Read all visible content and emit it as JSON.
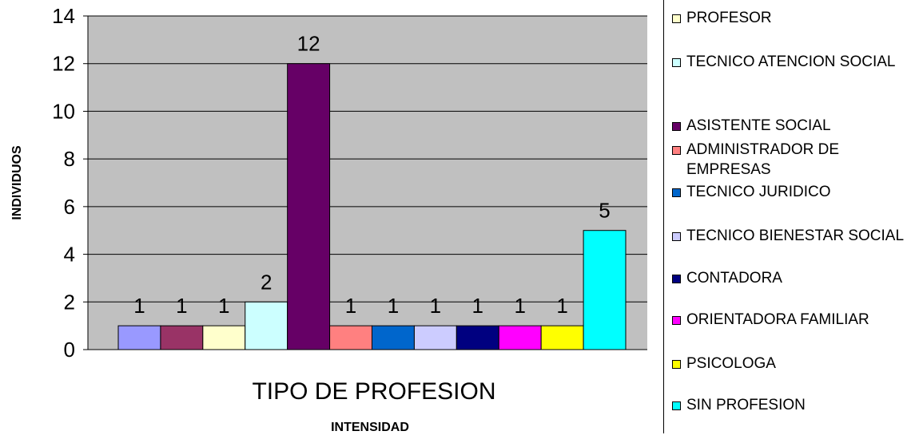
{
  "chart_data": {
    "type": "bar",
    "categories": [
      "",
      "",
      "",
      "",
      "",
      "",
      "",
      "",
      "",
      "",
      "",
      ""
    ],
    "values": [
      1,
      1,
      1,
      2,
      12,
      1,
      1,
      1,
      1,
      1,
      1,
      5
    ],
    "data_labels": [
      "1",
      "1",
      "1",
      "2",
      "12",
      "1",
      "1",
      "1",
      "1",
      "1",
      "1",
      "5"
    ],
    "bar_colors": [
      "#9999FF",
      "#993366",
      "#FFFFCC",
      "#CCFFFF",
      "#660066",
      "#FF8080",
      "#0066CC",
      "#CCCCFF",
      "#000080",
      "#FF00FF",
      "#FFFF00",
      "#00FFFF"
    ],
    "xlabel": "TIPO DE PROFESION",
    "xtitle": "INTENSIDAD",
    "ylabel": "INDIVIDUOS",
    "ylim": [
      0,
      14
    ],
    "yticks": [
      0,
      2,
      4,
      6,
      8,
      10,
      12,
      14
    ],
    "grid": true,
    "plot_background": "#C0C0C0",
    "legend_position": "right",
    "legend": [
      {
        "label": "PROFESOR",
        "color": "#FFFFCC"
      },
      {
        "label": "TECNICO ATENCION SOCIAL",
        "color": "#CCFFFF"
      },
      {
        "label": "ASISTENTE SOCIAL",
        "color": "#660066"
      },
      {
        "label": "ADMINISTRADOR DE EMPRESAS",
        "color": "#FF8080"
      },
      {
        "label": "TECNICO JURIDICO",
        "color": "#0066CC"
      },
      {
        "label": "TECNICO BIENESTAR SOCIAL",
        "color": "#CCCCFF"
      },
      {
        "label": "CONTADORA",
        "color": "#000080"
      },
      {
        "label": "ORIENTADORA FAMILIAR",
        "color": "#FF00FF"
      },
      {
        "label": "PSICOLOGA",
        "color": "#FFFF00"
      },
      {
        "label": "SIN PROFESION",
        "color": "#00FFFF"
      }
    ]
  }
}
